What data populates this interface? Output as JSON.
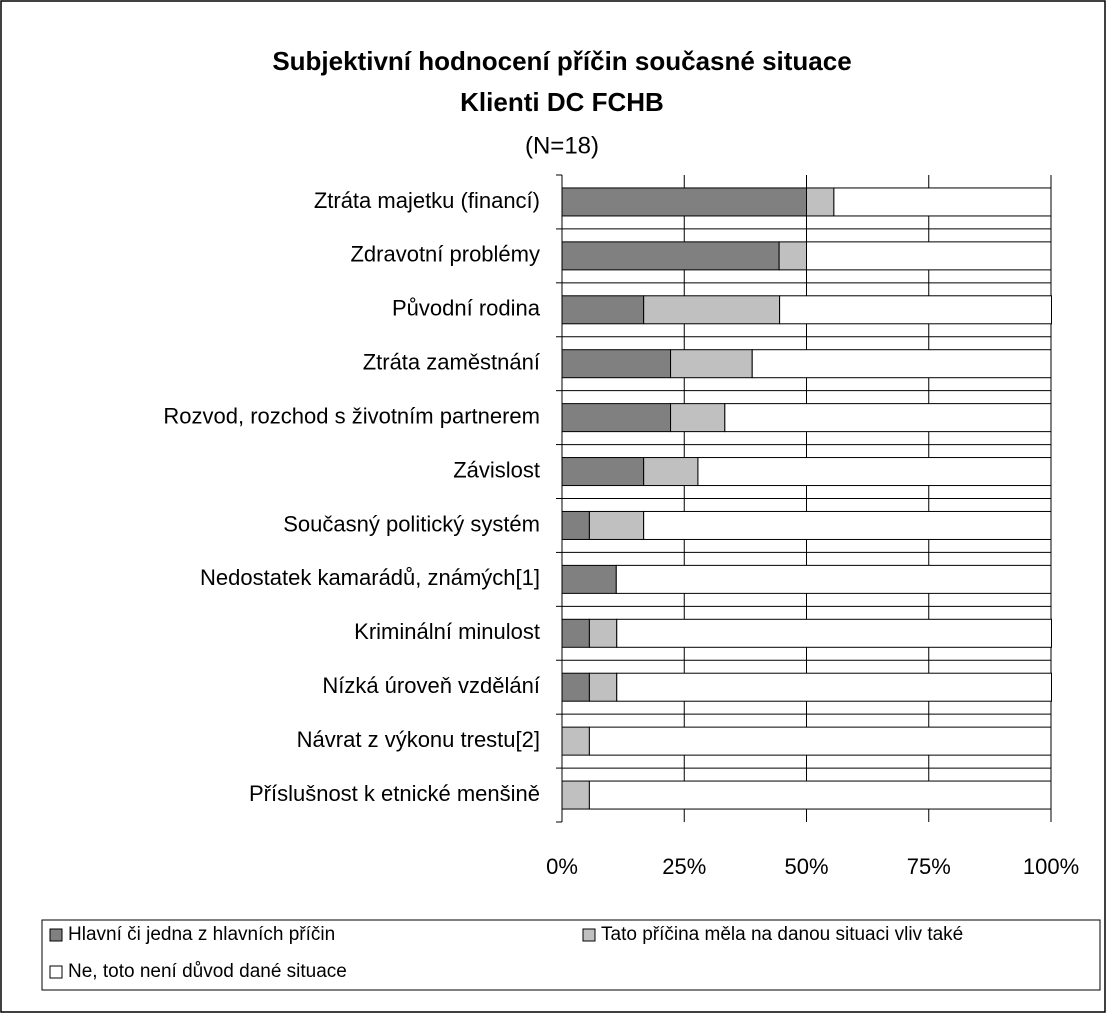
{
  "chart_data": {
    "type": "stacked_barh",
    "title": "Subjektivní hodnocení příčin současné situace",
    "subtitle": "Klienti DC FCHB",
    "note": "(N=18)",
    "categories": [
      "Ztráta majetku (financí)",
      "Zdravotní problémy",
      "Původní rodina",
      "Ztráta zaměstnání",
      "Rozvod, rozchod s životním partnerem",
      "Závislost",
      "Současný politický systém",
      "Nedostatek kamarádů, známých[1]",
      "Kriminální minulost",
      "Nízká úroveň vzdělání",
      "Návrat z výkonu trestu[2]",
      "Příslušnost k etnické menšině"
    ],
    "series": [
      {
        "name": "Hlavní či jedna z hlavních příčin",
        "color": "#808080",
        "values": [
          50,
          44.4,
          16.7,
          22.2,
          22.2,
          16.7,
          5.6,
          11.1,
          5.6,
          5.6,
          0,
          0
        ]
      },
      {
        "name": "Tato příčina měla na danou situaci vliv také",
        "color": "#c0c0c0",
        "values": [
          5.6,
          5.6,
          27.8,
          16.7,
          11.1,
          11.1,
          11.1,
          0,
          5.6,
          5.6,
          5.6,
          5.6
        ]
      },
      {
        "name": "Ne, toto není důvod dané situace",
        "color": "#ffffff",
        "values": [
          44.4,
          50,
          55.6,
          61.1,
          66.7,
          72.2,
          83.3,
          88.9,
          88.9,
          88.9,
          94.4,
          94.4
        ]
      }
    ],
    "xlim": [
      0,
      100
    ],
    "xticks": [
      {
        "value": 0,
        "label": "0%"
      },
      {
        "value": 25,
        "label": "25%"
      },
      {
        "value": 50,
        "label": "50%"
      },
      {
        "value": 75,
        "label": "75%"
      },
      {
        "value": 100,
        "label": "100%"
      }
    ],
    "grid": true
  }
}
